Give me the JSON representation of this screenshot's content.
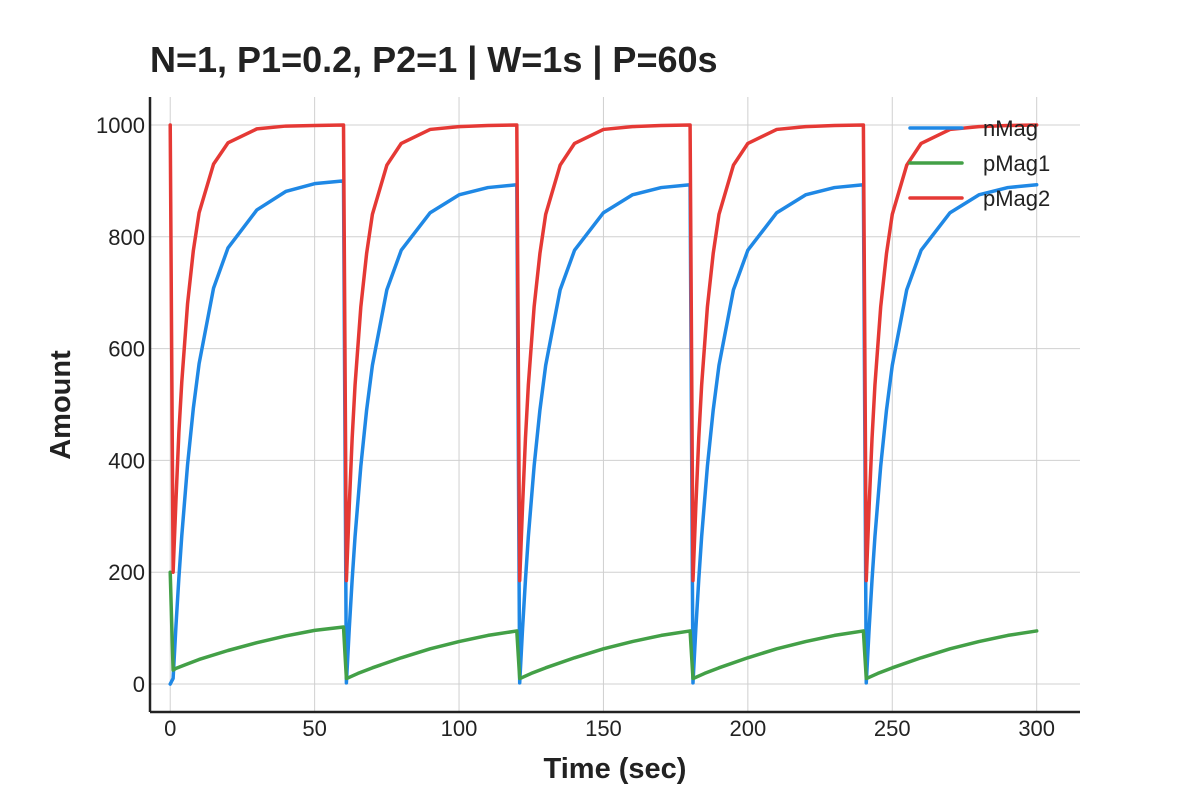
{
  "chart_data": {
    "type": "line",
    "title": "N=1, P1=0.2, P2=1 | W=1s | P=60s",
    "xlabel": "Time (sec)",
    "ylabel": "Amount",
    "xlim": [
      -7,
      315
    ],
    "ylim": [
      -50,
      1050
    ],
    "xticks": [
      0,
      50,
      100,
      150,
      200,
      250,
      300
    ],
    "yticks": [
      0,
      200,
      400,
      600,
      800,
      1000
    ],
    "grid": true,
    "legend": {
      "placement": "top-right"
    },
    "series": [
      {
        "name": "nMag",
        "color": "#1f88e5",
        "x": [
          0,
          0.5,
          1,
          2,
          3,
          4,
          6,
          8,
          10,
          15,
          20,
          30,
          40,
          50,
          60,
          60.5,
          61,
          62,
          63,
          64,
          66,
          68,
          70,
          75,
          80,
          90,
          100,
          110,
          120,
          120.5,
          121,
          122,
          123,
          124,
          126,
          128,
          130,
          135,
          140,
          150,
          160,
          170,
          180,
          180.5,
          181,
          182,
          183,
          184,
          186,
          188,
          190,
          195,
          200,
          210,
          220,
          230,
          240,
          240.5,
          241,
          242,
          243,
          244,
          246,
          248,
          250,
          255,
          260,
          270,
          280,
          290,
          300
        ],
        "y": [
          0,
          5,
          10,
          105,
          190,
          265,
          392,
          493,
          573,
          708,
          780,
          848,
          881,
          895,
          900,
          450,
          2,
          100,
          187,
          264,
          390,
          490,
          570,
          705,
          776,
          843,
          875,
          888,
          893,
          450,
          2,
          100,
          187,
          264,
          390,
          490,
          570,
          705,
          776,
          843,
          875,
          888,
          893,
          450,
          2,
          100,
          187,
          264,
          390,
          490,
          570,
          705,
          776,
          843,
          875,
          888,
          893,
          450,
          2,
          100,
          187,
          264,
          390,
          490,
          570,
          705,
          776,
          843,
          875,
          888,
          893
        ]
      },
      {
        "name": "pMag1",
        "color": "#43a047",
        "x": [
          0,
          0.5,
          1,
          2,
          5,
          10,
          20,
          30,
          40,
          50,
          60,
          60.5,
          61,
          62,
          65,
          70,
          80,
          90,
          100,
          110,
          120,
          120.5,
          121,
          122,
          125,
          130,
          140,
          150,
          160,
          170,
          180,
          180.5,
          181,
          182,
          185,
          190,
          200,
          210,
          220,
          230,
          240,
          240.5,
          241,
          242,
          245,
          250,
          260,
          270,
          280,
          290,
          300
        ],
        "y": [
          200,
          110,
          25,
          28,
          34,
          44,
          60,
          74,
          86,
          96,
          102,
          55,
          10,
          12,
          19,
          29,
          47,
          63,
          76,
          87,
          95,
          52,
          10,
          12,
          19,
          29,
          47,
          63,
          76,
          87,
          95,
          52,
          10,
          12,
          19,
          29,
          47,
          63,
          76,
          87,
          95,
          52,
          10,
          12,
          19,
          29,
          47,
          63,
          76,
          87,
          95
        ]
      },
      {
        "name": "pMag2",
        "color": "#e53935",
        "x": [
          0,
          0.5,
          1,
          2,
          3,
          4,
          6,
          8,
          10,
          15,
          20,
          30,
          40,
          50,
          60,
          60.5,
          61,
          62,
          63,
          64,
          66,
          68,
          70,
          75,
          80,
          90,
          100,
          110,
          120,
          120.5,
          121,
          122,
          123,
          124,
          126,
          128,
          130,
          135,
          140,
          150,
          160,
          170,
          180,
          180.5,
          181,
          182,
          183,
          184,
          186,
          188,
          190,
          195,
          200,
          210,
          220,
          230,
          240,
          240.5,
          241,
          242,
          243,
          244,
          246,
          248,
          250,
          255,
          260,
          270,
          280,
          290,
          300
        ],
        "y": [
          1000,
          600,
          200,
          330,
          450,
          540,
          680,
          775,
          843,
          930,
          968,
          993,
          998,
          999,
          1000,
          600,
          185,
          320,
          440,
          535,
          675,
          770,
          840,
          928,
          967,
          992,
          997,
          999,
          1000,
          600,
          185,
          320,
          440,
          535,
          675,
          770,
          840,
          928,
          967,
          992,
          997,
          999,
          1000,
          600,
          185,
          320,
          440,
          535,
          675,
          770,
          840,
          928,
          967,
          992,
          997,
          999,
          1000,
          600,
          185,
          320,
          440,
          535,
          675,
          770,
          840,
          928,
          967,
          992,
          997,
          999,
          1000
        ]
      }
    ]
  }
}
